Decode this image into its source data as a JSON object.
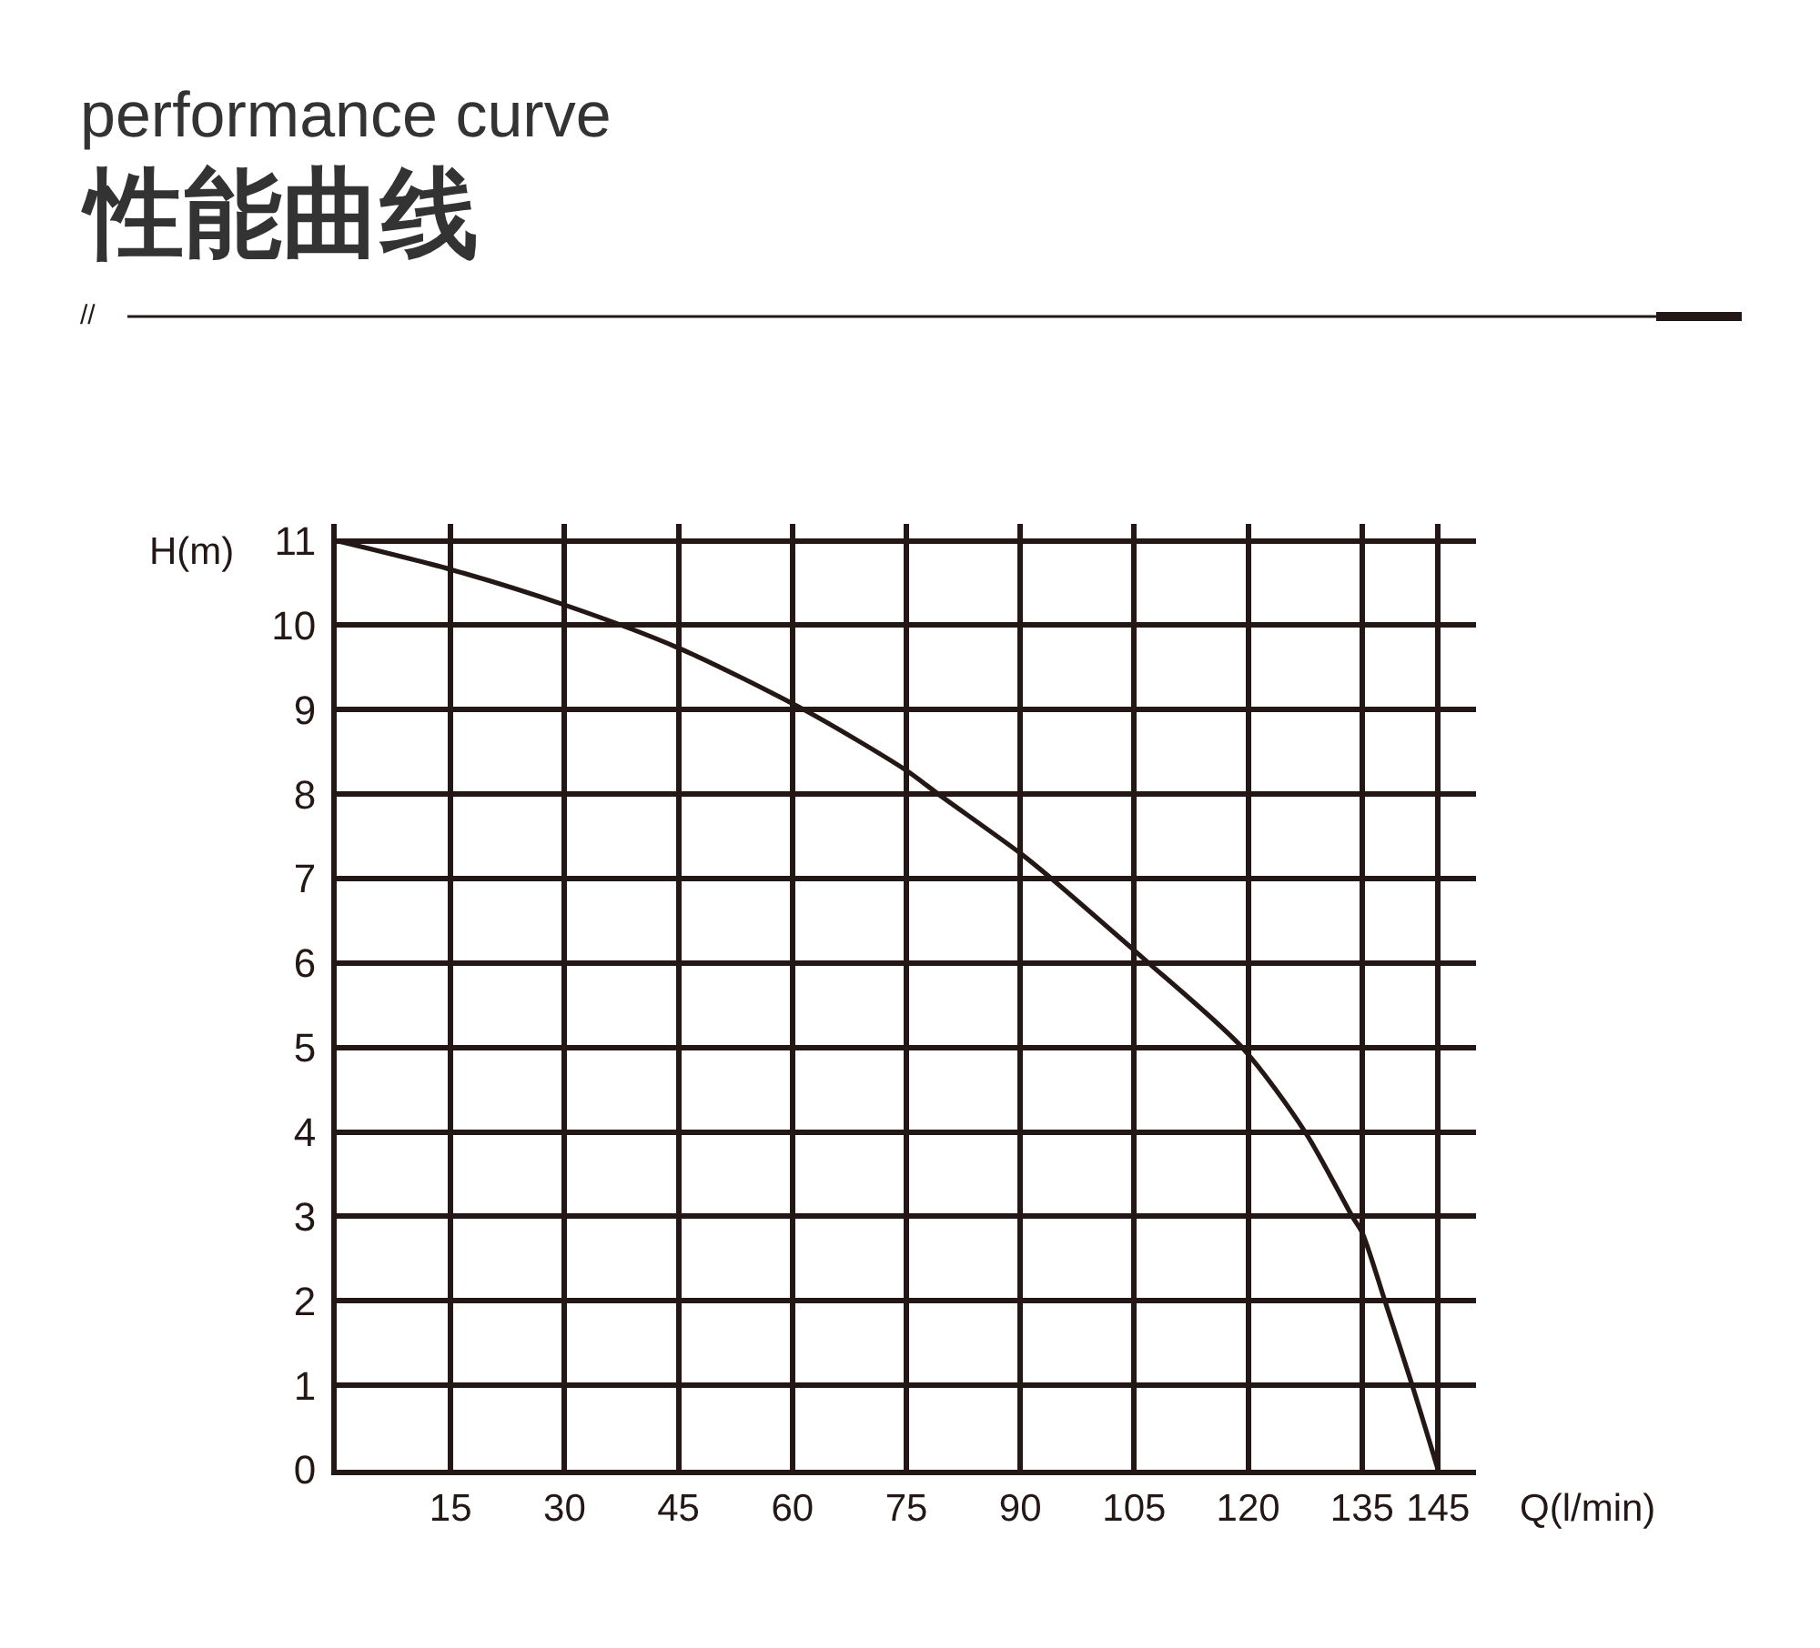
{
  "chart_data": {
    "type": "line",
    "title": "性能曲线",
    "subtitle": "performance curve",
    "xlabel": "Q(l/min)",
    "ylabel": "H(m)",
    "annotations": [
      "//"
    ],
    "x": [
      0,
      15,
      30,
      45,
      61.5,
      75,
      79.2,
      90,
      94.1,
      105,
      106.9,
      119.2,
      127.5,
      133.7,
      135,
      138,
      141.6,
      145
    ],
    "series": [
      {
        "color": "#231815",
        "values": [
          11,
          10.66,
          10.24,
          9.73,
          9,
          8.28,
          8,
          7.3,
          7,
          6.15,
          6,
          5,
          4,
          3,
          2.81,
          2,
          1,
          0
        ]
      }
    ],
    "xlim": [
      0,
      150
    ],
    "xticks": [
      15,
      30,
      45,
      60,
      75,
      90,
      105,
      120,
      135,
      145
    ],
    "ylim": [
      0,
      11.2
    ],
    "yticks": [
      0,
      1,
      2,
      3,
      4,
      5,
      6,
      7,
      8,
      9,
      10,
      11
    ],
    "grid": true,
    "marker": "none",
    "line_style": "solid"
  }
}
